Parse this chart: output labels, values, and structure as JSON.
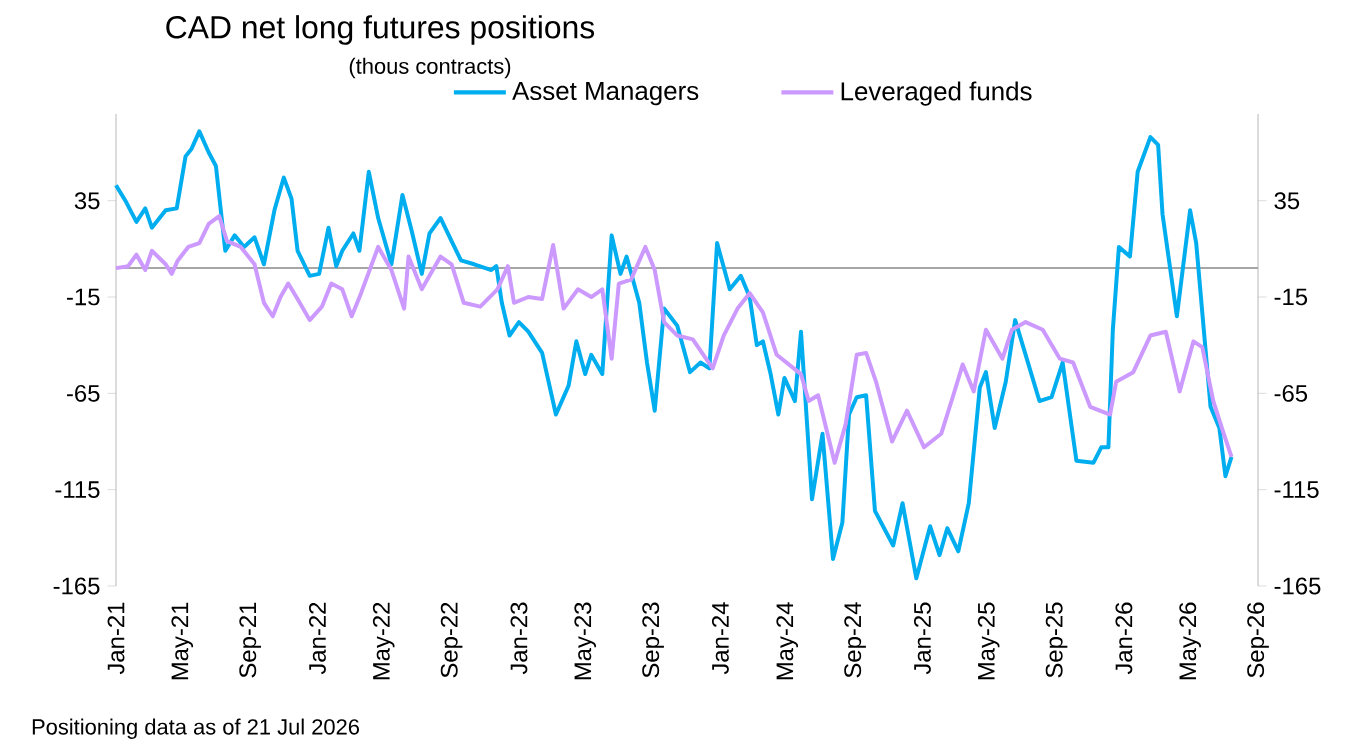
{
  "chart_data": {
    "type": "line",
    "title": "CAD net long futures positions",
    "subtitle": "(thous contracts)",
    "annotations": [
      "Positioning data as of 21 Jul 2026"
    ],
    "legend": "top",
    "xlim": [
      "2021-01-01",
      "2026-09-01"
    ],
    "xticks": [
      {
        "value": "2021-01-01",
        "label": "Jan-21"
      },
      {
        "value": "2021-05-01",
        "label": "May-21"
      },
      {
        "value": "2021-09-01",
        "label": "Sep-21"
      },
      {
        "value": "2022-01-01",
        "label": "Jan-22"
      },
      {
        "value": "2022-05-01",
        "label": "May-22"
      },
      {
        "value": "2022-09-01",
        "label": "Sep-22"
      },
      {
        "value": "2023-01-01",
        "label": "Jan-23"
      },
      {
        "value": "2023-05-01",
        "label": "May-23"
      },
      {
        "value": "2023-09-01",
        "label": "Sep-23"
      },
      {
        "value": "2024-01-01",
        "label": "Jan-24"
      },
      {
        "value": "2024-05-01",
        "label": "May-24"
      },
      {
        "value": "2024-09-01",
        "label": "Sep-24"
      },
      {
        "value": "2025-01-01",
        "label": "Jan-25"
      },
      {
        "value": "2025-05-01",
        "label": "May-25"
      },
      {
        "value": "2025-09-01",
        "label": "Sep-25"
      },
      {
        "value": "2026-01-01",
        "label": "Jan-26"
      },
      {
        "value": "2026-05-01",
        "label": "May-26"
      },
      {
        "value": "2026-09-01",
        "label": "Sep-26"
      }
    ],
    "ylim": [
      -165,
      80
    ],
    "yticks": [
      35,
      -15,
      -65,
      -115,
      -165
    ],
    "y2lim": [
      -165,
      80
    ],
    "y2ticks": [
      35,
      -15,
      -65,
      -115,
      -165
    ],
    "ref_lines": [
      {
        "axis": "y",
        "value": 0,
        "color": "#a6a6a6"
      }
    ],
    "series": [
      {
        "name": "Asset Managers",
        "color": "#00aeef",
        "x": [
          "2021-01-01",
          "2021-01-18",
          "2021-02-07",
          "2021-02-23",
          "2021-03-07",
          "2021-04-01",
          "2021-04-21",
          "2021-05-07",
          "2021-05-18",
          "2021-06-01",
          "2021-06-18",
          "2021-07-01",
          "2021-07-18",
          "2021-08-04",
          "2021-08-21",
          "2021-09-09",
          "2021-09-26",
          "2021-10-15",
          "2021-11-01",
          "2021-11-15",
          "2021-11-26",
          "2021-12-18",
          "2022-01-04",
          "2022-01-21",
          "2022-02-04",
          "2022-02-15",
          "2022-03-07",
          "2022-03-18",
          "2022-04-04",
          "2022-04-21",
          "2022-05-15",
          "2022-06-04",
          "2022-06-21",
          "2022-07-09",
          "2022-07-23",
          "2022-08-12",
          "2022-09-01",
          "2022-09-18",
          "2022-10-12",
          "2022-11-12",
          "2022-11-21",
          "2022-12-01",
          "2022-12-15",
          "2023-01-01",
          "2023-01-18",
          "2023-02-12",
          "2023-03-09",
          "2023-04-01",
          "2023-04-15",
          "2023-05-01",
          "2023-05-12",
          "2023-06-01",
          "2023-06-18",
          "2023-07-04",
          "2023-07-15",
          "2023-08-07",
          "2023-08-21",
          "2023-09-04",
          "2023-09-21",
          "2023-10-15",
          "2023-11-07",
          "2023-11-26",
          "2023-12-12",
          "2023-12-26",
          "2024-01-18",
          "2024-02-07",
          "2024-02-23",
          "2024-03-07",
          "2024-03-18",
          "2024-04-01",
          "2024-04-15",
          "2024-04-26",
          "2024-05-15",
          "2024-05-26",
          "2024-06-15",
          "2024-07-04",
          "2024-07-23",
          "2024-08-09",
          "2024-08-21",
          "2024-09-04",
          "2024-09-21",
          "2024-10-07",
          "2024-11-09",
          "2024-11-26",
          "2024-12-21",
          "2025-01-15",
          "2025-02-01",
          "2025-02-15",
          "2025-03-07",
          "2025-03-26",
          "2025-04-15",
          "2025-04-26",
          "2025-05-12",
          "2025-06-01",
          "2025-06-18",
          "2025-07-07",
          "2025-08-01",
          "2025-08-23",
          "2025-09-12",
          "2025-10-07",
          "2025-11-07",
          "2025-11-21",
          "2025-12-04",
          "2025-12-12",
          "2025-12-23",
          "2026-01-12",
          "2026-01-26",
          "2026-02-18",
          "2026-03-04",
          "2026-03-12",
          "2026-04-07",
          "2026-05-01",
          "2026-05-12",
          "2026-06-07",
          "2026-06-23",
          "2026-07-04",
          "2026-07-15"
        ],
        "values": [
          43,
          35,
          24,
          31,
          21,
          30,
          31,
          58,
          62,
          71,
          60,
          53,
          9,
          17,
          11,
          16,
          2,
          30,
          47,
          36,
          9,
          -4,
          -3,
          21,
          1,
          9,
          18,
          9,
          50,
          26,
          2,
          38,
          19,
          -3,
          18,
          26,
          14,
          4,
          2,
          -1,
          1,
          -18,
          -35,
          -28,
          -33,
          -44,
          -76,
          -61,
          -38,
          -55,
          -45,
          -55,
          17,
          -3,
          6,
          -18,
          -49,
          -74,
          -21,
          -30,
          -54,
          -49,
          -52,
          13,
          -11,
          -4,
          -15,
          -40,
          -38,
          -55,
          -76,
          -57,
          -69,
          -33,
          -120,
          -86,
          -151,
          -132,
          -76,
          -67,
          -66,
          -126,
          -144,
          -122,
          -161,
          -134,
          -149,
          -135,
          -147,
          -122,
          -62,
          -54,
          -83,
          -59,
          -27,
          -45,
          -69,
          -67,
          -49,
          -100,
          -101,
          -93,
          -93,
          -32,
          11,
          6,
          50,
          68,
          64,
          28,
          -25,
          30,
          13,
          -72,
          -83,
          -108,
          -98
        ]
      },
      {
        "name": "Leveraged funds",
        "color": "#cc99ff",
        "x": [
          "2021-01-01",
          "2021-01-23",
          "2021-02-07",
          "2021-02-23",
          "2021-03-07",
          "2021-04-01",
          "2021-04-12",
          "2021-04-23",
          "2021-05-12",
          "2021-06-01",
          "2021-06-18",
          "2021-07-07",
          "2021-07-21",
          "2021-08-15",
          "2021-09-09",
          "2021-09-26",
          "2021-10-12",
          "2021-10-26",
          "2021-11-09",
          "2021-11-26",
          "2021-12-18",
          "2022-01-09",
          "2022-01-26",
          "2022-02-15",
          "2022-03-04",
          "2022-03-21",
          "2022-04-21",
          "2022-05-15",
          "2022-06-07",
          "2022-06-15",
          "2022-07-09",
          "2022-07-23",
          "2022-08-12",
          "2022-09-01",
          "2022-09-23",
          "2022-10-23",
          "2022-11-23",
          "2022-12-12",
          "2022-12-23",
          "2023-01-18",
          "2023-02-12",
          "2023-03-04",
          "2023-03-23",
          "2023-04-18",
          "2023-05-12",
          "2023-06-01",
          "2023-06-18",
          "2023-07-01",
          "2023-07-23",
          "2023-08-18",
          "2023-09-04",
          "2023-09-21",
          "2023-10-15",
          "2023-11-12",
          "2023-12-18",
          "2024-01-07",
          "2024-02-01",
          "2024-02-23",
          "2024-03-18",
          "2024-04-12",
          "2024-05-04",
          "2024-05-26",
          "2024-06-09",
          "2024-06-26",
          "2024-07-26",
          "2024-08-15",
          "2024-09-04",
          "2024-09-21",
          "2024-10-09",
          "2024-11-07",
          "2024-12-04",
          "2025-01-04",
          "2025-02-04",
          "2025-02-26",
          "2025-03-15",
          "2025-04-04",
          "2025-04-26",
          "2025-05-26",
          "2025-06-12",
          "2025-07-07",
          "2025-08-07",
          "2025-09-07",
          "2025-10-01",
          "2025-11-01",
          "2025-12-07",
          "2025-12-18",
          "2026-01-18",
          "2026-02-18",
          "2026-03-18",
          "2026-04-12",
          "2026-05-07",
          "2026-05-23",
          "2026-06-12",
          "2026-07-01",
          "2026-07-15"
        ],
        "values": [
          0,
          1,
          7,
          -1,
          9,
          2,
          -3,
          4,
          11,
          13,
          23,
          27,
          14,
          11,
          2,
          -18,
          -25,
          -15,
          -8,
          -16,
          -27,
          -20,
          -8,
          -11,
          -25,
          -13,
          11,
          -1,
          -21,
          6,
          -11,
          -4,
          6,
          2,
          -18,
          -20,
          -11,
          1,
          -18,
          -15,
          -16,
          12,
          -21,
          -11,
          -15,
          -11,
          -47,
          -8,
          -6,
          11,
          -1,
          -28,
          -35,
          -37,
          -52,
          -35,
          -21,
          -13,
          -23,
          -45,
          -50,
          -55,
          -69,
          -66,
          -101,
          -81,
          -45,
          -44,
          -59,
          -90,
          -74,
          -93,
          -86,
          -66,
          -50,
          -64,
          -32,
          -47,
          -32,
          -28,
          -32,
          -47,
          -49,
          -72,
          -76,
          -59,
          -54,
          -35,
          -33,
          -64,
          -38,
          -41,
          -69,
          -86,
          -98
        ]
      }
    ]
  }
}
